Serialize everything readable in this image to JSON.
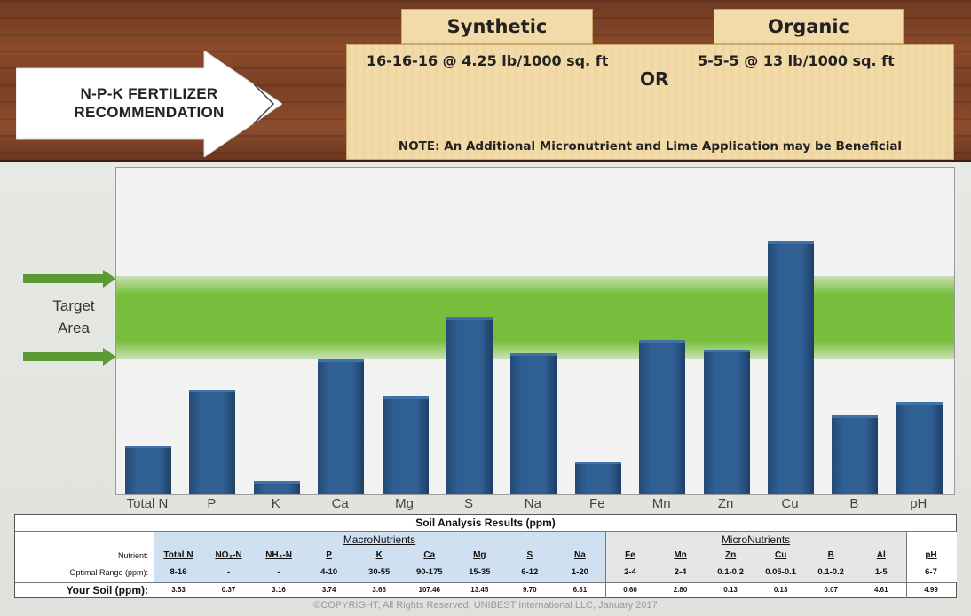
{
  "recommendation": {
    "title_line1": "N-P-K  FERTILIZER",
    "title_line2": "RECOMMENDATION",
    "synthetic_tab": "Synthetic",
    "organic_tab": "Organic",
    "synthetic_rate": "16-16-16 @ 4.25 lb/1000 sq. ft",
    "or_text": "OR",
    "organic_rate": "5-5-5 @ 13 lb/1000 sq. ft",
    "note": "NOTE: An Additional Micronutrient and Lime Application may be Beneficial"
  },
  "target": {
    "line1": "Target",
    "line2": "Area"
  },
  "chart_data": {
    "type": "bar",
    "categories": [
      "Total N",
      "P",
      "K",
      "Ca",
      "Mg",
      "S",
      "Na",
      "Fe",
      "Mn",
      "Zn",
      "Cu",
      "B",
      "pH"
    ],
    "values": [
      0.15,
      0.32,
      0.04,
      0.41,
      0.3,
      0.54,
      0.43,
      0.1,
      0.47,
      0.44,
      0.77,
      0.24,
      0.28
    ],
    "target_band": [
      0.42,
      0.67
    ],
    "ylim": [
      0,
      1
    ],
    "grid": false,
    "colors": {
      "bar": "#2f5f93",
      "band": "#78be3c",
      "arrow": "#5b9a34"
    }
  },
  "table": {
    "title": "Soil Analysis Results (ppm)",
    "macro_label": "MacroNutrients",
    "micro_label": "MicroNutrients",
    "row_labels": {
      "nutrient": "Nutrient:",
      "range": "Optimal Range (ppm):",
      "yours": "Your Soil (ppm):"
    },
    "columns": [
      {
        "name": "Total N",
        "range": "8-16",
        "value": "3.53"
      },
      {
        "name": "NO₃-N",
        "range": "-",
        "value": "0.37"
      },
      {
        "name": "NH₄-N",
        "range": "-",
        "value": "3.16"
      },
      {
        "name": "P",
        "range": "4-10",
        "value": "3.74"
      },
      {
        "name": "K",
        "range": "30-55",
        "value": "3.66"
      },
      {
        "name": "Ca",
        "range": "90-175",
        "value": "107.46"
      },
      {
        "name": "Mg",
        "range": "15-35",
        "value": "13.45"
      },
      {
        "name": "S",
        "range": "6-12",
        "value": "9.70"
      },
      {
        "name": "Na",
        "range": "1-20",
        "value": "6.31"
      },
      {
        "name": "Fe",
        "range": "2-4",
        "value": "0.60"
      },
      {
        "name": "Mn",
        "range": "2-4",
        "value": "2.80"
      },
      {
        "name": "Zn",
        "range": "0.1-0.2",
        "value": "0.13"
      },
      {
        "name": "Cu",
        "range": "0.05-0.1",
        "value": "0.13"
      },
      {
        "name": "B",
        "range": "0.1-0.2",
        "value": "0.07"
      },
      {
        "name": "Al",
        "range": "1-5",
        "value": "4.61"
      },
      {
        "name": "pH",
        "range": "6-7",
        "value": "4.99"
      }
    ]
  },
  "copyright": "©COPYRIGHT, All Rights Reserved, UNIBEST International LLC, January 2017"
}
